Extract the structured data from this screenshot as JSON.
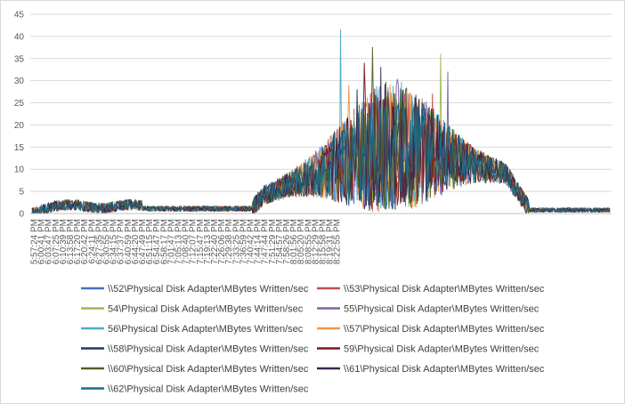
{
  "chart_data": {
    "type": "line",
    "title": "",
    "xlabel": "",
    "ylabel": "",
    "ylim": [
      0,
      45
    ],
    "yticks": [
      0,
      5,
      10,
      15,
      20,
      25,
      30,
      35,
      40,
      45
    ],
    "grid": true,
    "legend_position": "bottom",
    "x_tick_labels": [
      "5:57:24 PM",
      "6:00:41 PM",
      "6:03:47 PM",
      "6:07:25 PM",
      "6:10:39 PM",
      "6:13:58 PM",
      "6:17:20 PM",
      "6:20:42 PM",
      "6:24:11 PM",
      "6:27:35 PM",
      "6:30:55 PM",
      "6:34:15 PM",
      "6:37:37 PM",
      "6:40:59 PM",
      "6:44:20 PM",
      "6:47:49 PM",
      "6:51:15 PM",
      "6:54:47 PM",
      "6:58:17 PM",
      "7:01:47 PM",
      "7:05:13 PM",
      "7:08:40 PM",
      "7:12:07 PM",
      "7:15:47 PM",
      "7:19:13 PM",
      "7:22:40 PM",
      "7:26:06 PM",
      "7:29:38 PM",
      "7:33:25 PM",
      "7:36:59 PM",
      "7:40:42 PM",
      "7:44:14 PM",
      "7:47:44 PM",
      "7:51:29 PM",
      "7:54:57 PM",
      "7:58:26 PM",
      "8:01:56 PM",
      "8:05:20 PM",
      "8:08:55 PM",
      "8:12:29 PM",
      "8:15:58 PM",
      "8:19:31 PM",
      "8:22:55 PM"
    ],
    "series": [
      {
        "name": "\\\\52\\Physical Disk Adapter\\MBytes Written/sec",
        "color": "#4472c4",
        "peak": 25
      },
      {
        "name": "\\\\53\\Physical Disk Adapter\\MBytes Written/sec",
        "color": "#c0504d",
        "peak": 27
      },
      {
        "name": "54\\Physical Disk Adapter\\MBytes Written/sec",
        "color": "#9bbb59",
        "peak": 36
      },
      {
        "name": "55\\Physical Disk Adapter\\MBytes Written/sec",
        "color": "#8064a2",
        "peak": 32
      },
      {
        "name": "56\\Physical Disk Adapter\\MBytes Written/sec",
        "color": "#4bacc6",
        "peak": 41.5
      },
      {
        "name": "\\\\57\\Physical Disk Adapter\\MBytes Written/sec",
        "color": "#f79646",
        "peak": 29
      },
      {
        "name": "\\\\58\\Physical Disk Adapter\\MBytes Written/sec",
        "color": "#1f3864",
        "peak": 28
      },
      {
        "name": "59\\Physical Disk Adapter\\MBytes Written/sec",
        "color": "#7b1818",
        "peak": 34
      },
      {
        "name": "\\\\60\\Physical Disk Adapter\\MBytes Written/sec",
        "color": "#4f6228",
        "peak": 37.5
      },
      {
        "name": "\\\\61\\Physical Disk Adapter\\MBytes Written/sec",
        "color": "#3b2750",
        "peak": 33
      },
      {
        "name": "\\\\62\\Physical Disk Adapter\\MBytes Written/sec",
        "color": "#1a6f8a",
        "peak": 24
      }
    ]
  }
}
